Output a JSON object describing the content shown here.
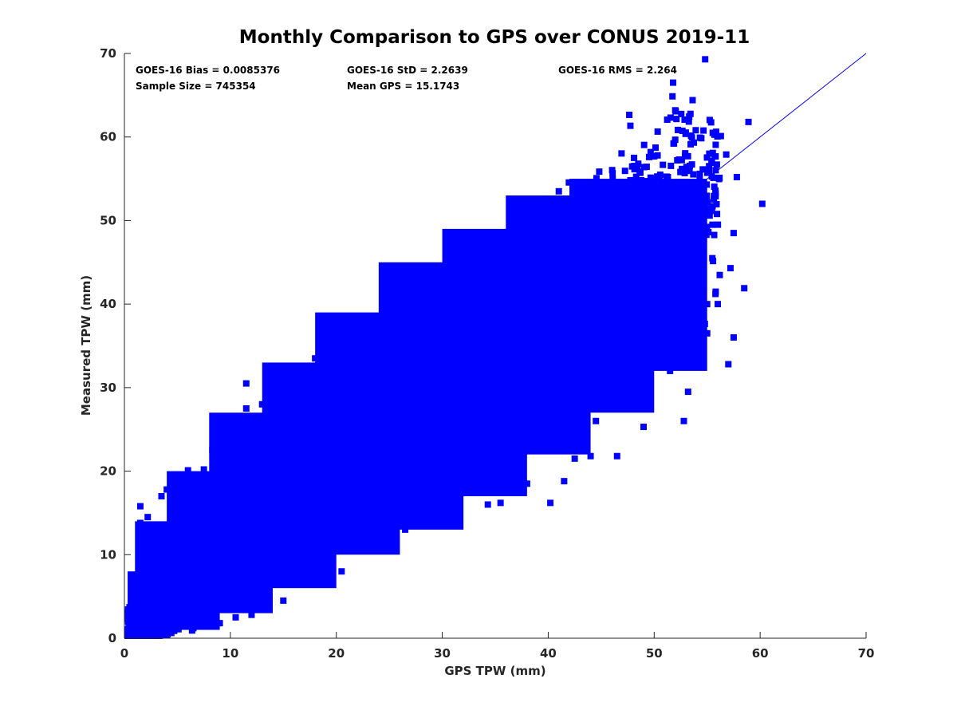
{
  "chart_data": {
    "type": "scatter",
    "title": "Monthly Comparison to GPS over CONUS 2019-11",
    "xlabel": "GPS TPW (mm)",
    "ylabel": "Measured TPW (mm)",
    "xlim": [
      0,
      70
    ],
    "ylim": [
      0,
      70
    ],
    "xticks": [
      "0",
      "10",
      "20",
      "30",
      "40",
      "50",
      "60",
      "70"
    ],
    "yticks": [
      "0",
      "10",
      "20",
      "30",
      "40",
      "50",
      "60",
      "70"
    ],
    "grid": false,
    "colors": {
      "points": "#0000ff",
      "line": "#0000ff",
      "axes": "#262626"
    },
    "reference_line": {
      "name": "1:1 line",
      "x": [
        0,
        70
      ],
      "y": [
        0,
        70
      ]
    },
    "annotations": [
      "GOES-16 Bias = 0.0085376",
      "GOES-16 StD = 2.2639",
      "GOES-16 RMS = 2.264",
      "Sample Size = 745354",
      "Mean GPS = 15.1743"
    ],
    "series": [
      {
        "name": "GOES-16 vs GPS",
        "marker": "square",
        "bands": [
          {
            "x": [
              0.3,
              5
            ],
            "y": [
              0.5,
              8
            ]
          },
          {
            "x": [
              1,
              9
            ],
            "y": [
              1,
              14
            ]
          },
          {
            "x": [
              4,
              14
            ],
            "y": [
              3,
              20
            ]
          },
          {
            "x": [
              8,
              20
            ],
            "y": [
              6,
              27
            ]
          },
          {
            "x": [
              13,
              26
            ],
            "y": [
              10,
              33
            ]
          },
          {
            "x": [
              18,
              32
            ],
            "y": [
              13,
              39
            ]
          },
          {
            "x": [
              24,
              38
            ],
            "y": [
              17,
              45
            ]
          },
          {
            "x": [
              30,
              44
            ],
            "y": [
              22,
              49
            ]
          },
          {
            "x": [
              36,
              50
            ],
            "y": [
              27,
              53
            ]
          },
          {
            "x": [
              42,
              55
            ],
            "y": [
              32,
              55
            ]
          }
        ],
        "points": [
          [
            58.9,
            61.8
          ],
          [
            60.2,
            52.0
          ],
          [
            58.5,
            41.9
          ],
          [
            55.2,
            58.0
          ],
          [
            56.8,
            57.9
          ],
          [
            48.1,
            57.5
          ],
          [
            48.5,
            56.8
          ],
          [
            57.8,
            55.2
          ],
          [
            57.5,
            48.5
          ],
          [
            57.2,
            44.3
          ],
          [
            57.5,
            36.0
          ],
          [
            57.0,
            32.8
          ],
          [
            55.0,
            40.0
          ],
          [
            53.2,
            29.5
          ],
          [
            52.8,
            26.0
          ],
          [
            52.5,
            33.3
          ],
          [
            49.0,
            25.3
          ],
          [
            46.5,
            21.8
          ],
          [
            44.0,
            21.8
          ],
          [
            42.5,
            21.5
          ],
          [
            41.5,
            18.8
          ],
          [
            40.2,
            16.2
          ],
          [
            38.0,
            18.5
          ],
          [
            35.5,
            16.2
          ],
          [
            34.3,
            16.0
          ],
          [
            30.5,
            17.0
          ],
          [
            25.5,
            14.2
          ],
          [
            21.5,
            17.5
          ],
          [
            41.0,
            53.5
          ],
          [
            43.5,
            53.5
          ],
          [
            44.5,
            53.0
          ],
          [
            39.0,
            48.0
          ],
          [
            37.5,
            46.5
          ],
          [
            35.0,
            44.6
          ],
          [
            31.5,
            43.5
          ],
          [
            30.0,
            42.0
          ],
          [
            28.0,
            38.5
          ],
          [
            25.0,
            37.5
          ],
          [
            22.5,
            34.5
          ],
          [
            18.5,
            34.0
          ],
          [
            18.0,
            33.5
          ],
          [
            11.5,
            30.5
          ],
          [
            11.5,
            27.5
          ],
          [
            13.0,
            28.0
          ],
          [
            8.3,
            22.5
          ],
          [
            7.5,
            20.2
          ],
          [
            6.0,
            20.1
          ],
          [
            6.5,
            18.5
          ],
          [
            3.5,
            17.0
          ],
          [
            4.0,
            17.8
          ],
          [
            4.5,
            15.5
          ],
          [
            1.5,
            15.8
          ],
          [
            2.2,
            14.5
          ],
          [
            1.5,
            13.8
          ],
          [
            10.5,
            2.5
          ],
          [
            15.0,
            4.5
          ],
          [
            13.5,
            6.5
          ],
          [
            17.0,
            8.5
          ],
          [
            20.0,
            12.0
          ],
          [
            23.0,
            14.0
          ],
          [
            27.5,
            17.5
          ],
          [
            29.0,
            19.5
          ],
          [
            31.0,
            19.0
          ],
          [
            33.0,
            21.0
          ],
          [
            36.0,
            22.0
          ],
          [
            38.5,
            23.5
          ],
          [
            40.5,
            24.5
          ],
          [
            42.0,
            25.0
          ],
          [
            44.5,
            26.0
          ],
          [
            46.0,
            27.5
          ],
          [
            47.5,
            28.5
          ],
          [
            49.5,
            30.5
          ],
          [
            51.5,
            32.0
          ],
          [
            53.0,
            34.0
          ],
          [
            55.0,
            36.5
          ],
          [
            56.0,
            40.0
          ],
          [
            54.5,
            45.0
          ],
          [
            55.5,
            49.5
          ],
          [
            53.5,
            52.0
          ],
          [
            52.5,
            54.5
          ],
          [
            50.5,
            55.0
          ],
          [
            47.5,
            54.5
          ],
          [
            45.5,
            54.0
          ],
          [
            20.5,
            8.0
          ],
          [
            24.0,
            11.0
          ],
          [
            26.5,
            13.0
          ],
          [
            16.5,
            20.0
          ],
          [
            14.5,
            26.0
          ],
          [
            9.5,
            24.0
          ],
          [
            3.0,
            13.0
          ],
          [
            5.5,
            13.0
          ],
          [
            2.5,
            11.0
          ],
          [
            12.0,
            2.8
          ],
          [
            6.5,
            1.2
          ],
          [
            9.0,
            1.8
          ]
        ]
      }
    ]
  }
}
